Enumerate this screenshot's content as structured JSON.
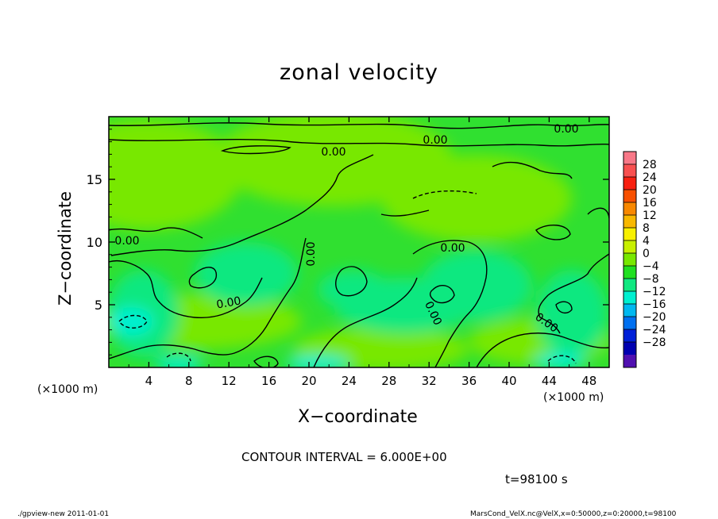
{
  "chart_data": {
    "type": "heatmap",
    "title": "zonal velocity",
    "xlabel": "X−coordinate",
    "ylabel": "Z−coordinate",
    "x_unit_left": "(×1000 m)",
    "x_unit_right": "(×1000 m)",
    "xlim": [
      0,
      50
    ],
    "ylim": [
      0,
      20
    ],
    "x_ticks": [
      4,
      8,
      12,
      16,
      20,
      24,
      28,
      32,
      36,
      40,
      44,
      48
    ],
    "y_ticks": [
      5,
      10,
      15
    ],
    "colorbar": {
      "ticks": [
        "28",
        "24",
        "20",
        "16",
        "12",
        "8",
        "4",
        "0",
        "−4",
        "−8",
        "−12",
        "−16",
        "−20",
        "−24",
        "−28"
      ],
      "colors": [
        "#f87888",
        "#f85050",
        "#f82010",
        "#f85000",
        "#f88800",
        "#f8b800",
        "#f8f000",
        "#c8f000",
        "#78e800",
        "#20e020",
        "#10e880",
        "#00f0d0",
        "#00b8f0",
        "#0070f0",
        "#0020d8",
        "#0000b0",
        "#5010b0"
      ]
    },
    "contour_labels": [
      "0.00",
      "0.00",
      "0.00",
      "0.00",
      "0.00",
      "0.00",
      "0.00",
      "0.00",
      "0.00"
    ],
    "field_colors": {
      "zero_band": "#30e030",
      "positive_band": "#78e800",
      "negative_band": "#10e880",
      "strong_negative": "#00f0d0"
    }
  },
  "contour_interval": "CONTOUR INTERVAL = 6.000E+00",
  "time": "t=98100 s",
  "footer_left": "./gpview-new  2011-01-01",
  "footer_right": "MarsCond_VelX.nc@VelX,x=0:50000,z=0:20000,t=98100"
}
